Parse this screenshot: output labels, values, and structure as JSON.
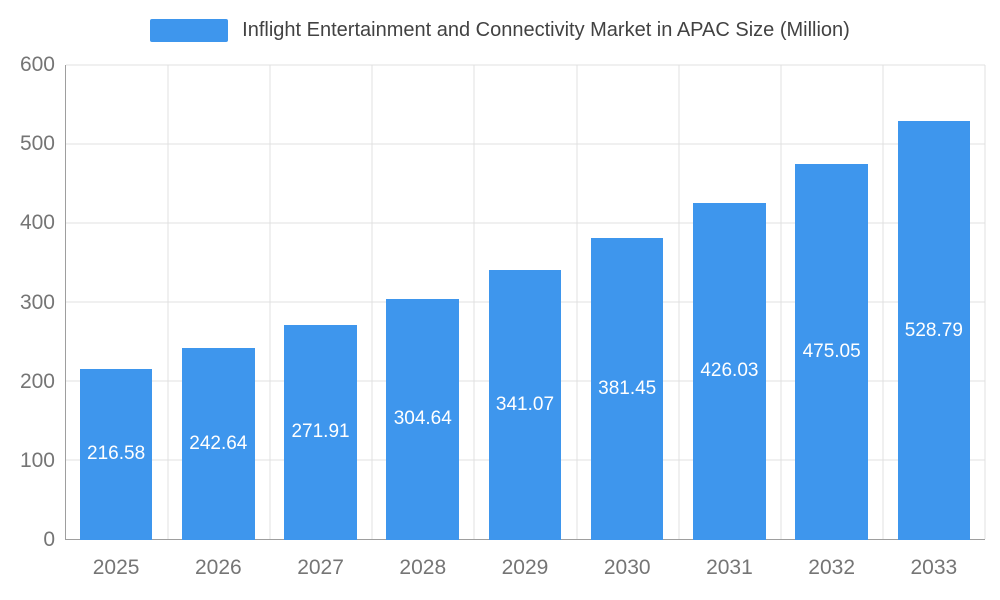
{
  "chart_data": {
    "type": "bar",
    "title": "Inflight Entertainment and Connectivity Market in APAC Size (Million)",
    "categories": [
      "2025",
      "2026",
      "2027",
      "2028",
      "2029",
      "2030",
      "2031",
      "2032",
      "2033"
    ],
    "values": [
      216.58,
      242.64,
      271.91,
      304.64,
      341.07,
      381.45,
      426.03,
      475.05,
      528.79
    ],
    "value_labels": [
      "216.58",
      "242.64",
      "271.91",
      "304.64",
      "341.07",
      "381.45",
      "426.03",
      "475.05",
      "528.79"
    ],
    "xlabel": "",
    "ylabel": "",
    "ylim": [
      0,
      600
    ],
    "yticks": [
      0,
      100,
      200,
      300,
      400,
      500,
      600
    ],
    "grid": true,
    "legend_position": "top",
    "colors": {
      "bar": "#3E96ED",
      "grid": "#e0e0e0",
      "axis": "#9e9e9e",
      "tick_text": "#757575",
      "title_text": "#424242",
      "bar_label": "#ffffff"
    }
  }
}
